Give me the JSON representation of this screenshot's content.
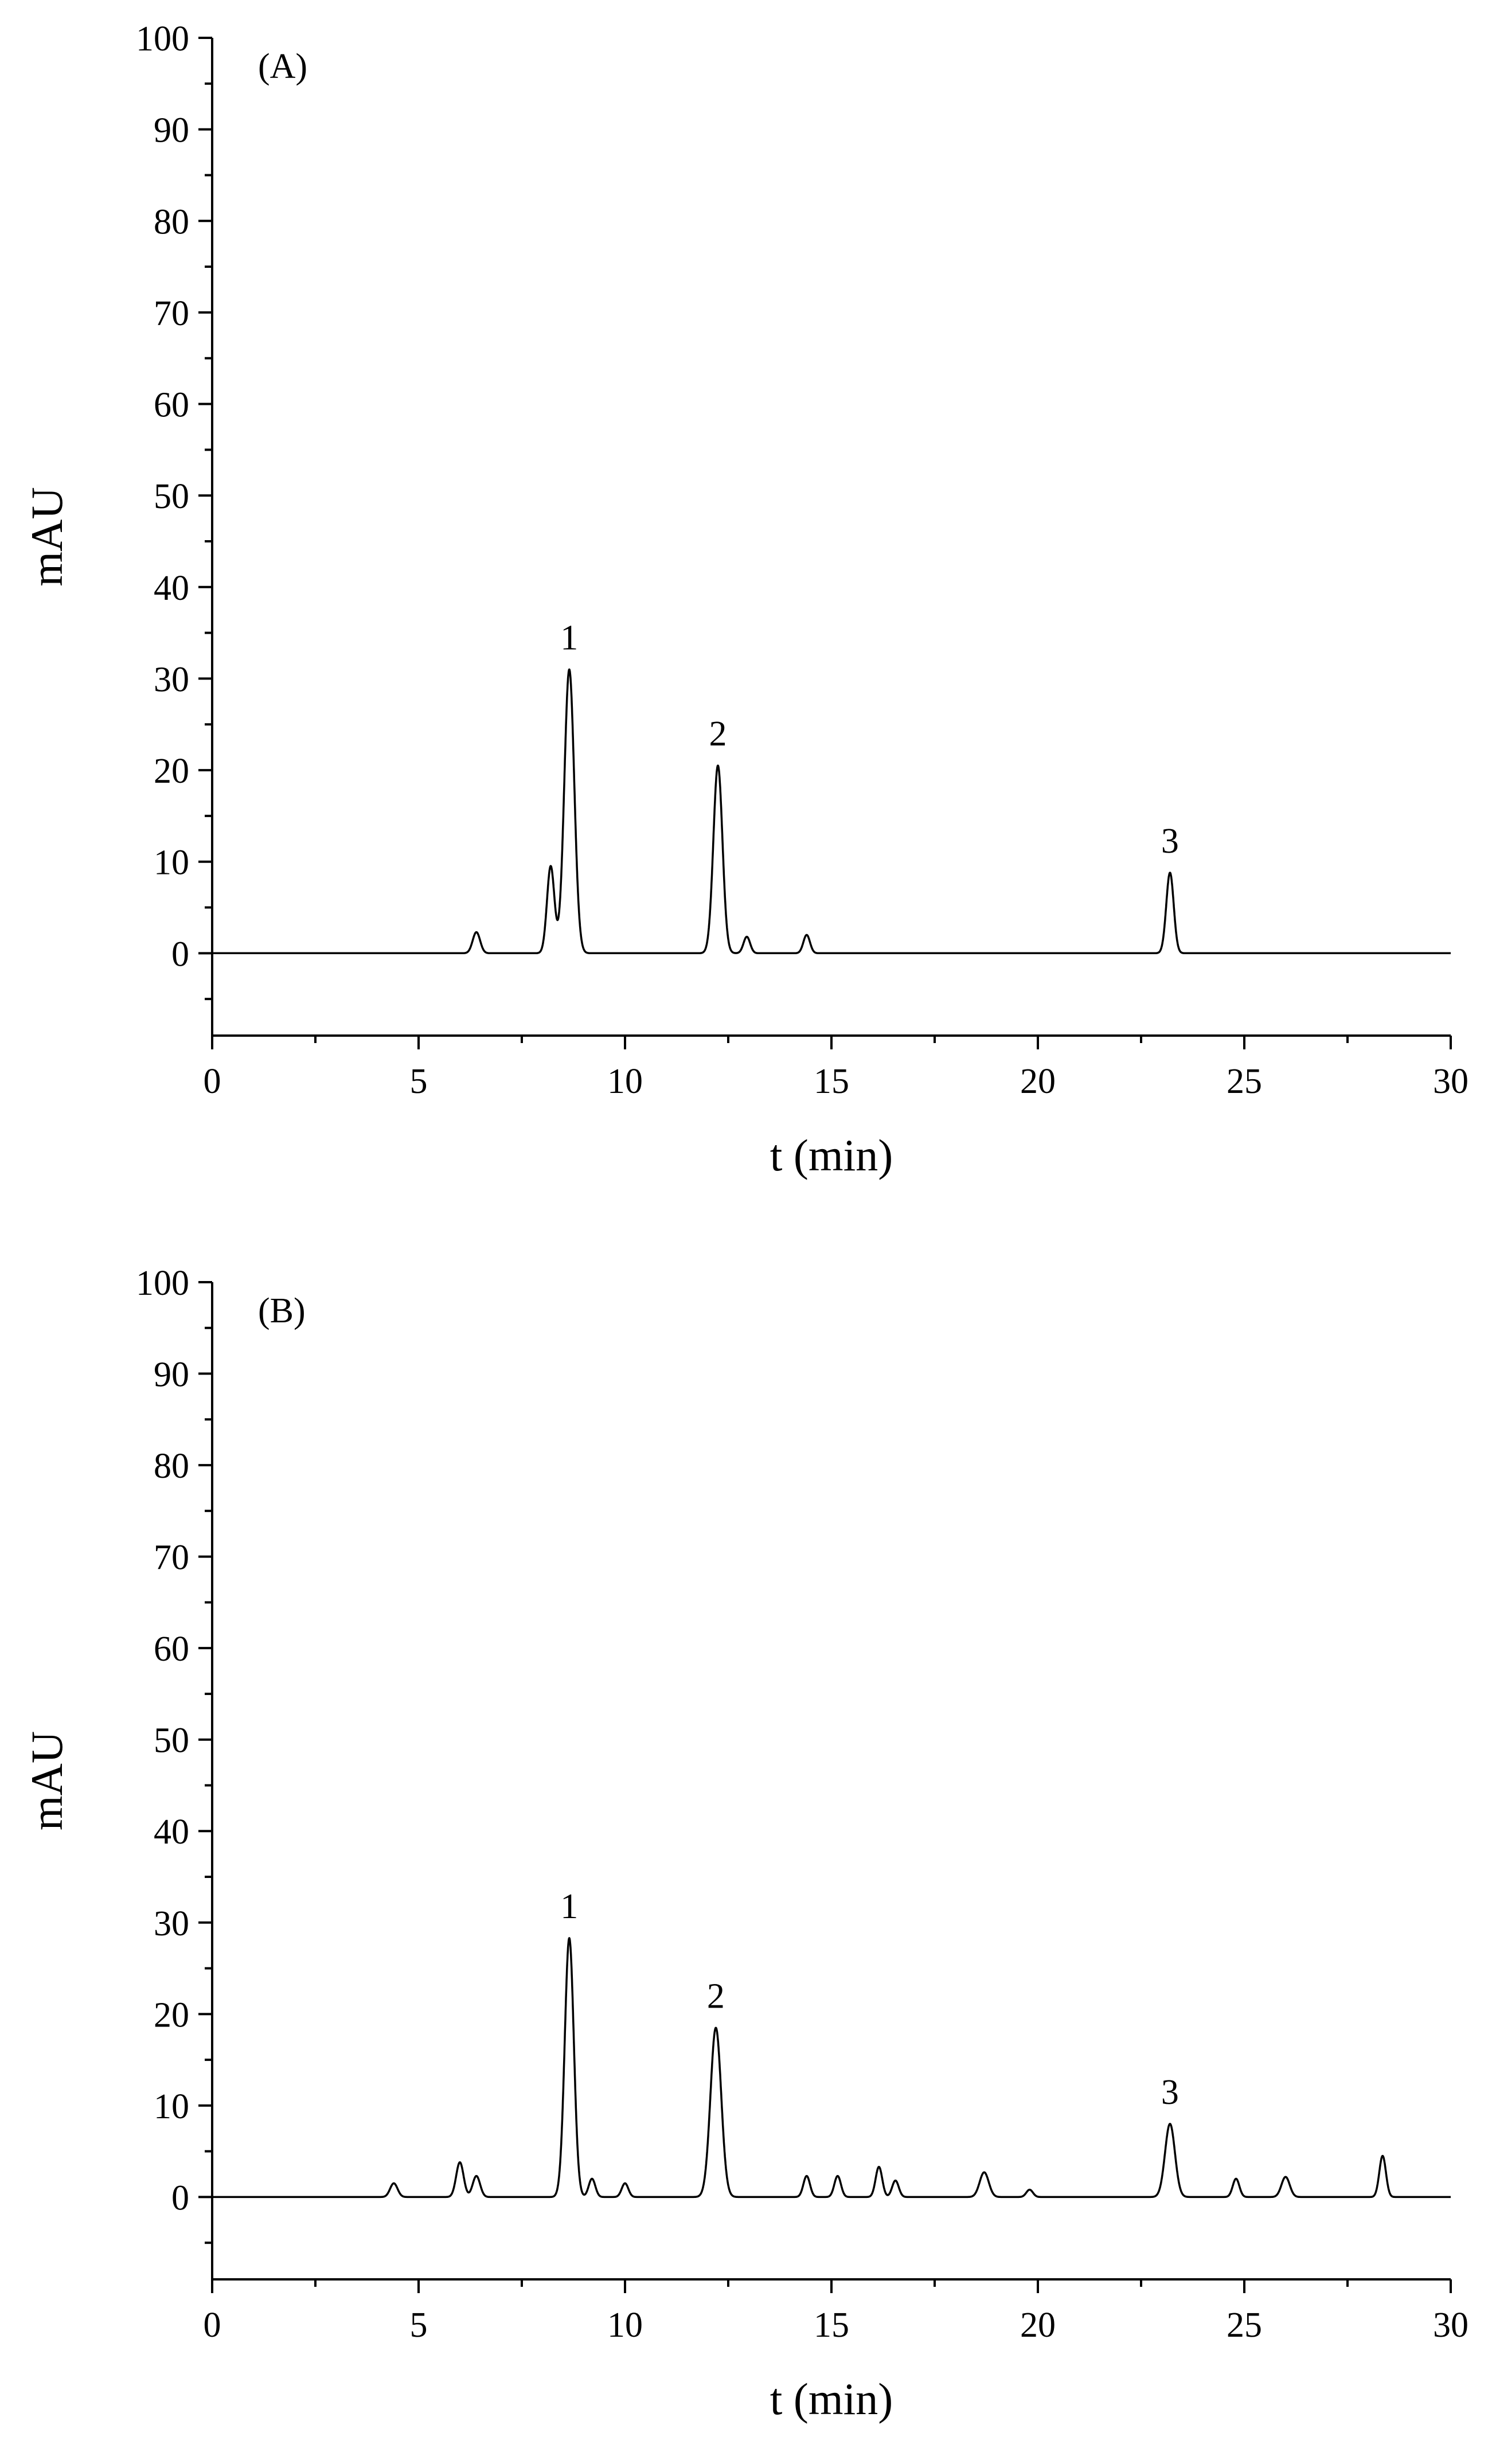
{
  "chart_data": [
    {
      "type": "line",
      "panel_label": "(A)",
      "xlabel": "t (min)",
      "ylabel": "mAU",
      "xlim": [
        0,
        30
      ],
      "ylim": [
        -9,
        100
      ],
      "x_ticks": [
        0,
        5,
        10,
        15,
        20,
        25,
        30
      ],
      "y_ticks": [
        0,
        10,
        20,
        30,
        40,
        50,
        60,
        70,
        80,
        90,
        100
      ],
      "grid": false,
      "legend": "none",
      "peaks": [
        {
          "t": 6.4,
          "height": 2.3,
          "width": 0.09
        },
        {
          "t": 8.2,
          "height": 9.5,
          "width": 0.09
        },
        {
          "t": 8.65,
          "height": 31,
          "width": 0.12
        },
        {
          "t": 12.25,
          "height": 20.5,
          "width": 0.11
        },
        {
          "t": 12.95,
          "height": 1.8,
          "width": 0.08
        },
        {
          "t": 14.4,
          "height": 2.0,
          "width": 0.08
        },
        {
          "t": 23.2,
          "height": 8.8,
          "width": 0.09
        }
      ],
      "annotations": [
        {
          "label": "1",
          "t": 8.65,
          "y": 31
        },
        {
          "label": "2",
          "t": 12.25,
          "y": 20.5
        },
        {
          "label": "3",
          "t": 23.2,
          "y": 8.8
        }
      ]
    },
    {
      "type": "line",
      "panel_label": "(B)",
      "xlabel": "t (min)",
      "ylabel": "mAU",
      "xlim": [
        0,
        30
      ],
      "ylim": [
        -9,
        100
      ],
      "x_ticks": [
        0,
        5,
        10,
        15,
        20,
        25,
        30
      ],
      "y_ticks": [
        0,
        10,
        20,
        30,
        40,
        50,
        60,
        70,
        80,
        90,
        100
      ],
      "grid": false,
      "legend": "none",
      "peaks": [
        {
          "t": 4.4,
          "height": 1.5,
          "width": 0.09
        },
        {
          "t": 6.0,
          "height": 3.8,
          "width": 0.09
        },
        {
          "t": 6.4,
          "height": 2.3,
          "width": 0.09
        },
        {
          "t": 8.65,
          "height": 28.3,
          "width": 0.11
        },
        {
          "t": 9.2,
          "height": 2.0,
          "width": 0.08
        },
        {
          "t": 10.0,
          "height": 1.5,
          "width": 0.08
        },
        {
          "t": 12.2,
          "height": 18.5,
          "width": 0.13
        },
        {
          "t": 14.4,
          "height": 2.3,
          "width": 0.08
        },
        {
          "t": 15.15,
          "height": 2.3,
          "width": 0.08
        },
        {
          "t": 16.15,
          "height": 3.3,
          "width": 0.08
        },
        {
          "t": 16.55,
          "height": 1.8,
          "width": 0.08
        },
        {
          "t": 18.7,
          "height": 2.7,
          "width": 0.11
        },
        {
          "t": 19.8,
          "height": 0.8,
          "width": 0.08
        },
        {
          "t": 23.2,
          "height": 8.0,
          "width": 0.12
        },
        {
          "t": 24.8,
          "height": 2.0,
          "width": 0.08
        },
        {
          "t": 26.0,
          "height": 2.2,
          "width": 0.1
        },
        {
          "t": 28.35,
          "height": 4.5,
          "width": 0.08
        }
      ],
      "annotations": [
        {
          "label": "1",
          "t": 8.65,
          "y": 28.3
        },
        {
          "label": "2",
          "t": 12.2,
          "y": 18.5
        },
        {
          "label": "3",
          "t": 23.2,
          "y": 8.0
        }
      ]
    }
  ]
}
